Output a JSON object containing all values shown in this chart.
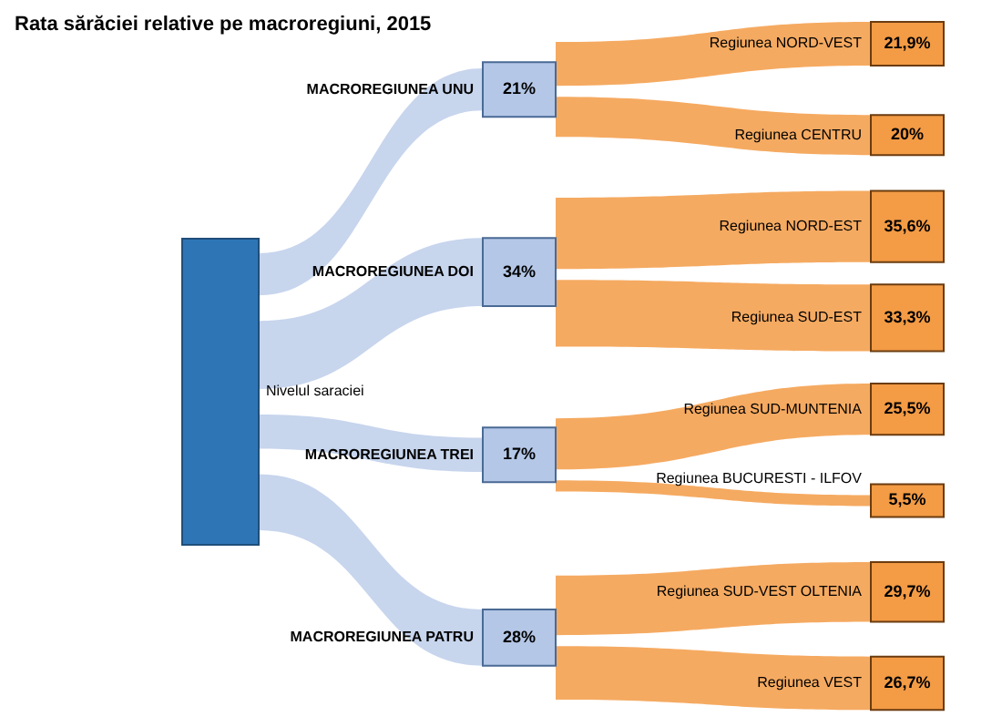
{
  "chart_data": {
    "type": "other",
    "title": "Rata sărăciei relative pe macroregiuni, 2015",
    "annotations": [
      "Nivelul saraciei"
    ],
    "categories": [
      "MACROREGIUNEA UNU",
      "MACROREGIUNEA DOI",
      "MACROREGIUNEA TREI",
      "MACROREGIUNEA PATRU"
    ],
    "values": [
      21,
      34,
      17,
      28
    ],
    "value_labels": [
      "21%",
      "34%",
      "17%",
      "28%"
    ],
    "color": "#b4c7e7",
    "series": [
      {
        "name": "Regiunea NORD-VEST",
        "color": "#f39b45",
        "values": [
          21.9,
          null,
          null,
          null
        ],
        "value_labels": [
          "21,9%",
          null,
          null,
          null
        ]
      },
      {
        "name": "Regiunea CENTRU",
        "color": "#f39b45",
        "values": [
          20,
          null,
          null,
          null
        ],
        "value_labels": [
          "20%",
          null,
          null,
          null
        ]
      },
      {
        "name": "Regiunea NORD-EST",
        "color": "#f39b45",
        "values": [
          null,
          35.6,
          null,
          null
        ],
        "value_labels": [
          null,
          "35,6%",
          null,
          null
        ]
      },
      {
        "name": "Regiunea SUD-EST",
        "color": "#f39b45",
        "values": [
          null,
          33.3,
          null,
          null
        ],
        "value_labels": [
          null,
          "33,3%",
          null,
          null
        ]
      },
      {
        "name": "Regiunea SUD-MUNTENIA",
        "color": "#f39b45",
        "values": [
          null,
          null,
          25.5,
          null
        ],
        "value_labels": [
          null,
          null,
          "25,5%",
          null
        ]
      },
      {
        "name": "Regiunea BUCURESTI - ILFOV",
        "color": "#f39b45",
        "values": [
          null,
          null,
          5.5,
          null
        ],
        "value_labels": [
          null,
          null,
          "5,5%",
          null
        ]
      },
      {
        "name": "Regiunea SUD-VEST OLTENIA",
        "color": "#f39b45",
        "values": [
          null,
          null,
          null,
          29.7
        ],
        "value_labels": [
          null,
          null,
          null,
          "29,7%"
        ]
      },
      {
        "name": "Regiunea VEST",
        "color": "#f39b45",
        "values": [
          null,
          null,
          null,
          26.7
        ],
        "value_labels": [
          null,
          null,
          null,
          "26,7%"
        ]
      }
    ]
  }
}
